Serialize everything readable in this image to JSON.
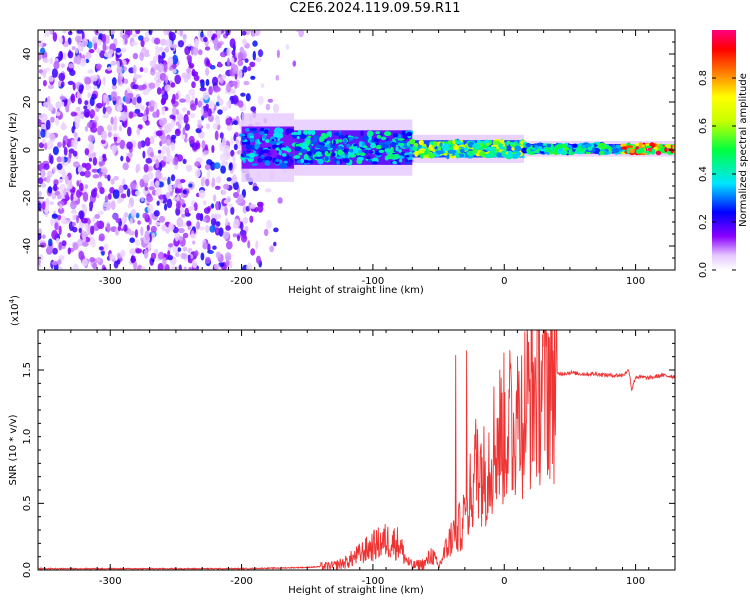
{
  "title": "C2E6.2024.119.09.59.R11",
  "colors": {
    "snr_line": "#ee3333",
    "frame": "#000000"
  },
  "chart_data": [
    {
      "type": "heatmap",
      "title": "",
      "xlabel": "Height of straight line (km)",
      "ylabel": "Frequency (Hz)",
      "xlim": [
        -355,
        130
      ],
      "ylim": [
        -50,
        50
      ],
      "xticks": [
        -300,
        -200,
        -100,
        0,
        100
      ],
      "yticks": [
        -40,
        -20,
        0,
        20,
        40
      ],
      "colorbar": {
        "label": "Normalized spectral amplitude",
        "range": [
          0,
          1
        ],
        "ticks": [
          0.0,
          0.2,
          0.4,
          0.6,
          0.8
        ],
        "colormap": "rainbow (white-violet-blue-cyan-green-yellow-red-pink)"
      },
      "regions": [
        {
          "x_from": -355,
          "x_to": -200,
          "freq_from": -50,
          "freq_to": 50,
          "amplitude": 0.15,
          "description_level": "scattered noise"
        },
        {
          "x_from": -200,
          "x_to": -160,
          "freq_from": -10,
          "freq_to": 12,
          "amplitude": 0.35
        },
        {
          "x_from": -160,
          "x_to": -70,
          "freq_from": -8,
          "freq_to": 10,
          "amplitude": 0.4
        },
        {
          "x_from": -70,
          "x_to": 15,
          "freq_from": -4,
          "freq_to": 5,
          "amplitude": 0.6
        },
        {
          "x_from": 15,
          "x_to": 90,
          "freq_from": -2,
          "freq_to": 3,
          "amplitude": 0.45
        },
        {
          "x_from": 90,
          "x_to": 130,
          "freq_from": -2,
          "freq_to": 3,
          "amplitude": 0.85
        }
      ]
    },
    {
      "type": "line",
      "title": "",
      "xlabel": "Height of straight line (km)",
      "ylabel": "SNR (10 * v/v)",
      "y_multiplier_label": "(x10",
      "y_multiplier_exp": "4",
      "y_multiplier_close": ")",
      "xlim": [
        -355,
        130
      ],
      "ylim": [
        0,
        1.8
      ],
      "xticks": [
        -300,
        -200,
        -100,
        0,
        100
      ],
      "yticks": [
        0.0,
        0.5,
        1.0,
        1.5
      ],
      "series": [
        {
          "x": [
            -355,
            -300,
            -250,
            -200,
            -170,
            -150,
            -130,
            -120,
            -110,
            -100,
            -90,
            -80,
            -75,
            -70,
            -60,
            -55,
            -50,
            -45,
            -40,
            -35,
            -30,
            -25,
            -20,
            -15,
            -10,
            -5,
            0,
            5,
            10,
            15,
            20,
            25,
            30,
            35,
            40,
            50,
            60,
            70,
            80,
            90,
            95,
            97,
            100,
            110,
            120,
            130
          ],
          "y": [
            0.01,
            0.01,
            0.01,
            0.01,
            0.015,
            0.02,
            0.03,
            0.06,
            0.12,
            0.18,
            0.22,
            0.2,
            0.08,
            0.03,
            0.05,
            0.12,
            0.02,
            0.14,
            0.25,
            0.3,
            0.4,
            0.6,
            0.85,
            0.7,
            0.9,
            1.0,
            1.05,
            1.1,
            1.15,
            1.22,
            1.32,
            1.4,
            1.44,
            1.46,
            1.47,
            1.48,
            1.47,
            1.47,
            1.46,
            1.46,
            1.5,
            1.35,
            1.45,
            1.44,
            1.46,
            1.45
          ]
        }
      ]
    }
  ]
}
